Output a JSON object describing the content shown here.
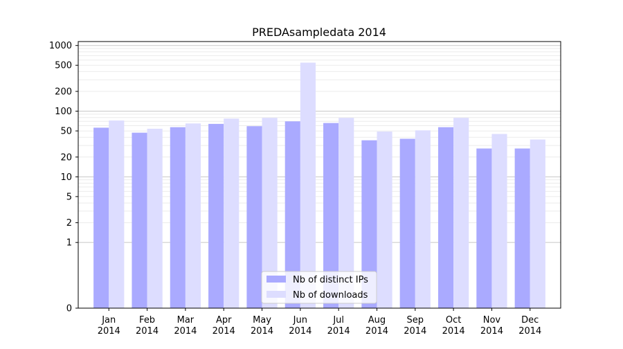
{
  "chart_data": {
    "type": "bar",
    "title": "PREDAsampledata 2014",
    "xlabel": "",
    "ylabel": "",
    "yscale": "symlog",
    "ylim": [
      0,
      1000
    ],
    "yticks": [
      0,
      1,
      2,
      5,
      10,
      20,
      50,
      100,
      200,
      500,
      1000
    ],
    "grid": true,
    "legend_position": "bottom-center",
    "categories": [
      "Jan\n2014",
      "Feb\n2014",
      "Mar\n2014",
      "Apr\n2014",
      "May\n2014",
      "Jun\n2014",
      "Jul\n2014",
      "Aug\n2014",
      "Sep\n2014",
      "Oct\n2014",
      "Nov\n2014",
      "Dec\n2014"
    ],
    "series": [
      {
        "name": "Nb of distinct IPs",
        "color": "#aaaaff",
        "values": [
          56,
          47,
          57,
          64,
          59,
          70,
          66,
          36,
          38,
          57,
          27,
          27
        ]
      },
      {
        "name": "Nb of downloads",
        "color": "#ddddff",
        "values": [
          72,
          54,
          65,
          77,
          79,
          548,
          79,
          49,
          51,
          79,
          45,
          37
        ]
      }
    ]
  }
}
